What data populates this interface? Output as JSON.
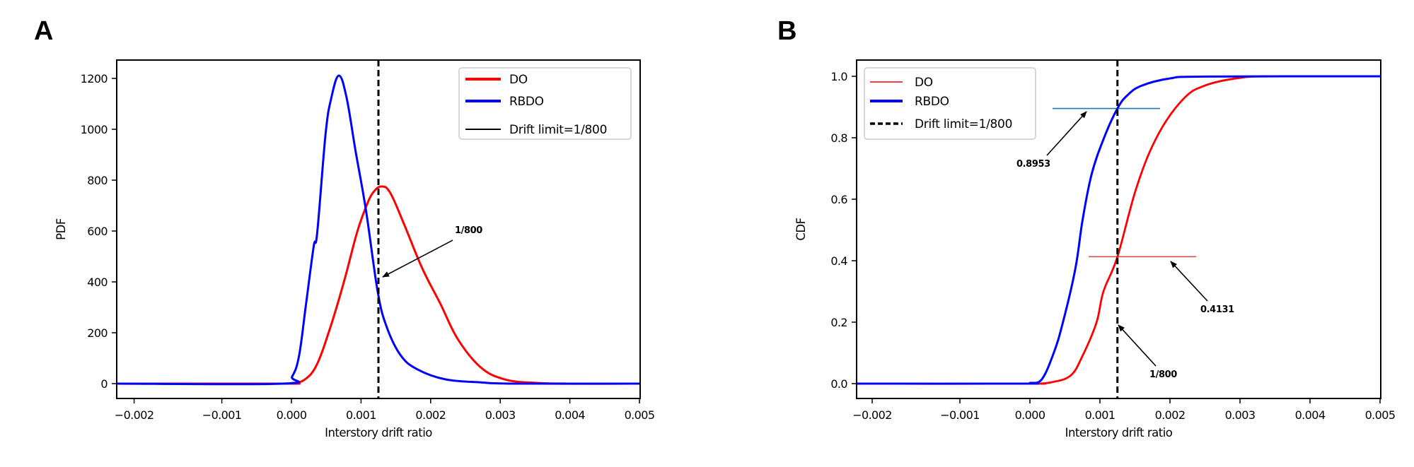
{
  "chart_data": [
    {
      "panel_label": "A",
      "type": "line",
      "xlabel": "Interstory drift ratio",
      "ylabel": "PDF",
      "xlim": [
        -0.0022,
        0.005
      ],
      "ylim": [
        -58,
        1272
      ],
      "xticks": [
        -0.002,
        -0.001,
        0.0,
        0.001,
        0.002,
        0.003,
        0.004,
        0.005
      ],
      "xtick_labels": [
        "−0.002",
        "−0.001",
        "0.000",
        "0.001",
        "0.002",
        "0.003",
        "0.004",
        "0.005"
      ],
      "yticks": [
        0,
        200,
        400,
        600,
        800,
        1000,
        1200
      ],
      "ytick_labels": [
        "0",
        "200",
        "400",
        "600",
        "800",
        "1000",
        "1200"
      ],
      "grid": false,
      "legend_position": "top-right",
      "series": [
        {
          "name": "DO",
          "color": "#ff0000",
          "x": [
            -0.0022,
            -0.0001,
            0.0,
            0.00018,
            0.00036,
            0.00056,
            0.00076,
            0.00094,
            0.00107,
            0.00117,
            0.00129,
            0.00142,
            0.00163,
            0.00188,
            0.00214,
            0.00239,
            0.00272,
            0.00306,
            0.0035,
            0.004,
            0.005
          ],
          "y": [
            0,
            0,
            2,
            14,
            72,
            222,
            406,
            592,
            694,
            750,
            775,
            750,
            619,
            453,
            314,
            175,
            64,
            17,
            3,
            0,
            0
          ]
        },
        {
          "name": "RBDO",
          "color": "#0000ff",
          "x": [
            -0.0022,
            -0.00012,
            1e-05,
            0.00011,
            0.00021,
            0.00032,
            0.00037,
            0.00049,
            0.00057,
            0.00068,
            0.00079,
            0.00092,
            0.00107,
            0.00124,
            0.00137,
            0.00157,
            0.00181,
            0.00221,
            0.00272,
            0.0032,
            0.005
          ],
          "y": [
            0,
            0,
            28,
            110,
            314,
            540,
            592,
            980,
            1120,
            1211,
            1128,
            917,
            683,
            361,
            222,
            111,
            56,
            17,
            5,
            0,
            0
          ]
        },
        {
          "name": "Drift limit=1/800",
          "color": "#000000",
          "style": "dashed",
          "vline_x": 0.00125
        }
      ],
      "annotations": [
        {
          "text": "1/800",
          "points_to": [
            0.00125,
            420
          ]
        }
      ]
    },
    {
      "panel_label": "B",
      "type": "line",
      "xlabel": "Interstory drift ratio",
      "ylabel": "CDF",
      "xlim": [
        -0.0022,
        0.005
      ],
      "ylim": [
        -0.05,
        1.05
      ],
      "xticks": [
        -0.002,
        -0.001,
        0.0,
        0.001,
        0.002,
        0.003,
        0.004,
        0.005
      ],
      "xtick_labels": [
        "−0.002",
        "−0.001",
        "0.000",
        "0.001",
        "0.002",
        "0.003",
        "0.004",
        "0.005"
      ],
      "yticks": [
        0.0,
        0.2,
        0.4,
        0.6,
        0.8,
        1.0
      ],
      "ytick_labels": [
        "0.0",
        "0.2",
        "0.4",
        "0.6",
        "0.8",
        "1.0"
      ],
      "grid": false,
      "legend_position": "top-left",
      "series": [
        {
          "name": "DO",
          "color": "#ff0000",
          "x": [
            -0.0022,
            0.0,
            0.0001,
            0.0003,
            0.00058,
            0.00075,
            0.00095,
            0.00105,
            0.00125,
            0.00153,
            0.00183,
            0.00219,
            0.0025,
            0.003,
            0.0035,
            0.005
          ],
          "y": [
            0,
            0,
            0.0,
            0.004,
            0.026,
            0.09,
            0.198,
            0.3,
            0.4131,
            0.644,
            0.81,
            0.926,
            0.97,
            0.995,
            1.0,
            1.0
          ]
        },
        {
          "name": "RBDO",
          "color": "#0000ff",
          "x": [
            -0.0022,
            -0.0001,
            0.0,
            0.00017,
            0.00034,
            0.00047,
            0.00065,
            0.00075,
            0.00088,
            0.00105,
            0.00125,
            0.0014,
            0.0016,
            0.002,
            0.0025,
            0.005
          ],
          "y": [
            0,
            0,
            0.002,
            0.014,
            0.1,
            0.198,
            0.375,
            0.53,
            0.68,
            0.795,
            0.8953,
            0.94,
            0.97,
            0.993,
            0.999,
            1.0
          ]
        },
        {
          "name": "Drift limit=1/800",
          "color": "#000000",
          "style": "dashed",
          "vline_x": 0.00125
        }
      ],
      "reference_lines": [
        {
          "y": 0.8953,
          "color": "#1f77b4"
        },
        {
          "y": 0.4131,
          "color": "#d05050"
        }
      ],
      "annotations": [
        {
          "text": "0.8953"
        },
        {
          "text": "0.4131"
        },
        {
          "text": "1/800"
        }
      ]
    }
  ]
}
